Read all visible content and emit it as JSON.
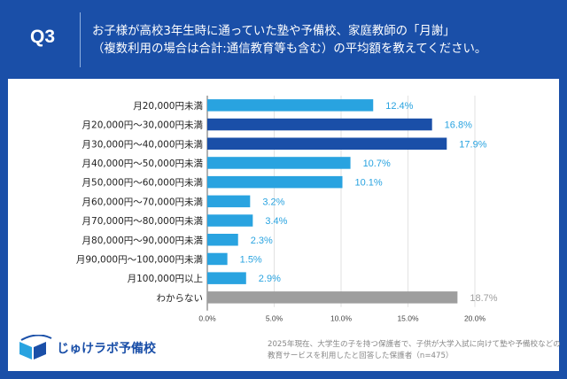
{
  "header": {
    "question": "Q3",
    "title_line1": "お子様が高校3年生時に通っていた塾や予備校、家庭教師の「月謝」",
    "title_line2": "（複数利用の場合は合計:通信教育等も含む）の平均額を教えてください。"
  },
  "footer": {
    "note_line1": "2025年現在、大学生の子を持つ保護者で、子供が大学入試に向けて塾や予備校などの",
    "note_line2": "教育サービスを利用したと回答した保護者（n=475）",
    "logo_text": "じゅけラボ予備校"
  },
  "colors": {
    "background": "#1a4fa8",
    "light_bar": "#29a3e0",
    "dark_bar": "#1a4fa8",
    "gray_bar": "#9e9e9e"
  },
  "chart_data": {
    "type": "bar",
    "orientation": "horizontal",
    "categories": [
      "月20,000円未満",
      "月20,000円〜30,000円未満",
      "月30,000円〜40,000円未満",
      "月40,000円〜50,000円未満",
      "月50,000円〜60,000円未満",
      "月60,000円〜70,000円未満",
      "月70,000円〜80,000円未満",
      "月80,000円〜90,000円未満",
      "月90,000円〜100,000円未満",
      "月100,000円以上",
      "わからない"
    ],
    "values": [
      12.4,
      16.8,
      17.9,
      10.7,
      10.1,
      3.2,
      3.4,
      2.3,
      1.5,
      2.9,
      18.7
    ],
    "value_labels": [
      "12.4%",
      "16.8%",
      "17.9%",
      "10.7%",
      "10.1%",
      "3.2%",
      "3.4%",
      "2.3%",
      "1.5%",
      "2.9%",
      "18.7%"
    ],
    "bar_colors": [
      "light",
      "dark",
      "dark",
      "light",
      "light",
      "light",
      "light",
      "light",
      "light",
      "light",
      "gray"
    ],
    "xlim": [
      0,
      20
    ],
    "xticks": [
      "0.0%",
      "5.0%",
      "10.0%",
      "15.0%",
      "20.0%"
    ],
    "grid": true
  }
}
